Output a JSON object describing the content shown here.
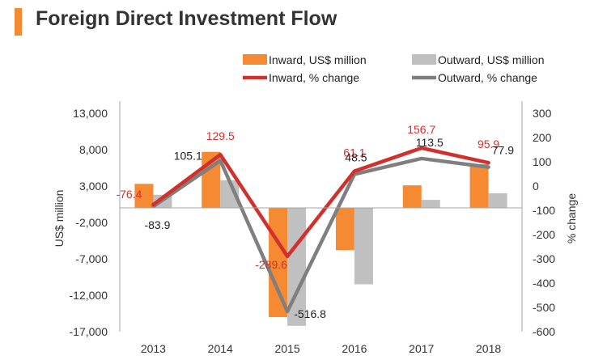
{
  "header": {
    "title": "Foreign Direct Investment Flow",
    "accent_color": "#F58A33"
  },
  "chart_data": {
    "type": "bar",
    "categories": [
      "2013",
      "2014",
      "2015",
      "2016",
      "2017",
      "2018"
    ],
    "series": [
      {
        "name": "Inward, US$ million",
        "kind": "bar",
        "axis": "left",
        "color": "#F58A33",
        "values": [
          3300,
          7700,
          -15000,
          -5800,
          3100,
          6000
        ]
      },
      {
        "name": "Outward, US$ million",
        "kind": "bar",
        "axis": "left",
        "color": "#C0C0C0",
        "values": [
          1800,
          3800,
          -16200,
          -10500,
          1100,
          2000
        ]
      },
      {
        "name": "Inward, % change",
        "kind": "line",
        "axis": "right",
        "color": "#D0312D",
        "values": [
          -76.4,
          129.5,
          -289.6,
          61.1,
          156.7,
          95.9
        ],
        "labels": [
          "-76.4",
          "129.5",
          "-289.6",
          "61.1",
          "156.7",
          "95.9"
        ]
      },
      {
        "name": "Outward, % change",
        "kind": "line",
        "axis": "right",
        "color": "#7F7F7F",
        "values": [
          -83.9,
          105.1,
          -516.8,
          48.5,
          113.5,
          77.9
        ],
        "labels": [
          "-83.9",
          "105.1",
          "-516.8",
          "48.5",
          "113.5",
          "77.9"
        ]
      }
    ],
    "ylabel": "US$ million",
    "ylabel_right": "% change",
    "ylim": [
      -17000,
      13000
    ],
    "yticks": [
      13000,
      8000,
      3000,
      -2000,
      -7000,
      -12000,
      -17000
    ],
    "ytick_labels": [
      "13,000",
      "8,000",
      "3,000",
      "-2,000",
      "-7,000",
      "-12,000",
      "-17,000"
    ],
    "ylim_right": [
      -600,
      300
    ],
    "yticks_right": [
      300,
      200,
      100,
      0,
      -100,
      -200,
      -300,
      -400,
      -500,
      -600
    ],
    "ytick_labels_right": [
      "300",
      "200",
      "100",
      "0",
      "-100",
      "-200",
      "-300",
      "-400",
      "-500",
      "-600"
    ],
    "grid": false,
    "legend_position": "top-right"
  }
}
